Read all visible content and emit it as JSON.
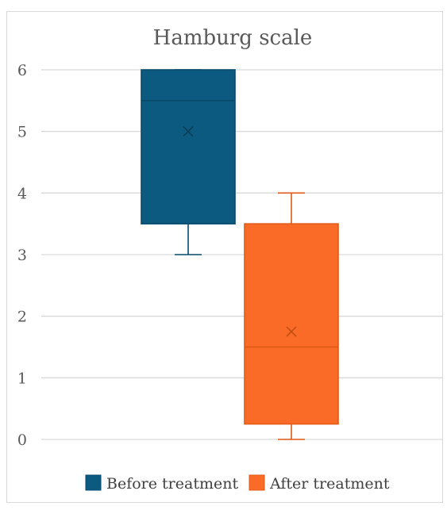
{
  "chart_data": {
    "type": "box",
    "title": "Hamburg scale",
    "xlabel": "",
    "ylabel": "",
    "ylim": [
      0,
      6
    ],
    "yticks": [
      0,
      1,
      2,
      3,
      4,
      5,
      6
    ],
    "grid": true,
    "legend_position": "bottom",
    "series": [
      {
        "name": "Before treatment",
        "color": "#0c5a80",
        "min": 3,
        "q1": 3.5,
        "median": 5.5,
        "q3": 6,
        "max": 6,
        "mean": 5
      },
      {
        "name": "After treatment",
        "color": "#f96b27",
        "min": 0,
        "q1": 0.25,
        "median": 1.5,
        "q3": 3.5,
        "max": 4,
        "mean": 1.75
      }
    ]
  }
}
